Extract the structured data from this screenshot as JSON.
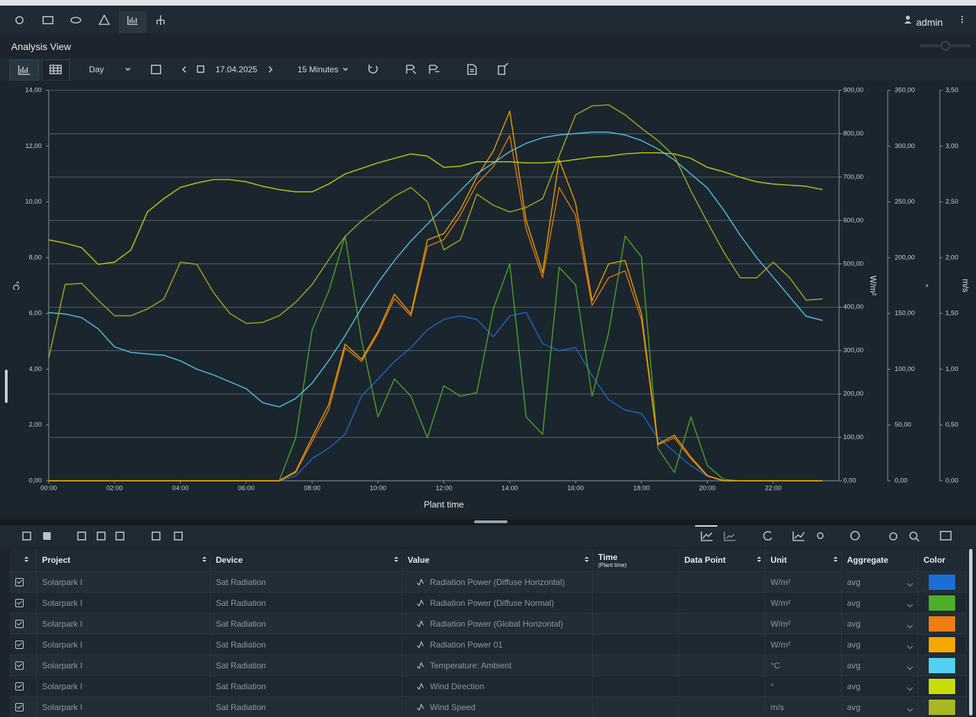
{
  "nav": {
    "user": "admin"
  },
  "view_title": "Analysis View",
  "toolbar": {
    "period": "Day",
    "date": "17.04.2025",
    "interval": "15 Minutes"
  },
  "chart_data": {
    "type": "line",
    "xlabel": "Plant time",
    "xlim": [
      0,
      24
    ],
    "xticks": [
      {
        "value": 0,
        "label": "00:00"
      },
      {
        "value": 2,
        "label": "02:00"
      },
      {
        "value": 4,
        "label": "04:00"
      },
      {
        "value": 6,
        "label": "06:00"
      },
      {
        "value": 8,
        "label": "08:00"
      },
      {
        "value": 10,
        "label": "10:00"
      },
      {
        "value": 12,
        "label": "12:00"
      },
      {
        "value": 14,
        "label": "14:00"
      },
      {
        "value": 16,
        "label": "16:00"
      },
      {
        "value": 18,
        "label": "18:00"
      },
      {
        "value": 20,
        "label": "20:00"
      },
      {
        "value": 22,
        "label": "22:00"
      }
    ],
    "axes": [
      {
        "label": "°C",
        "lim": [
          0,
          14
        ],
        "grid": false,
        "ticks": [
          {
            "value": 0,
            "label": "0,00"
          },
          {
            "value": 2,
            "label": "2,00"
          },
          {
            "value": 4,
            "label": "4,00"
          },
          {
            "value": 6,
            "label": "6,00"
          },
          {
            "value": 8,
            "label": "8,00"
          },
          {
            "value": 10,
            "label": "10,00"
          },
          {
            "value": 12,
            "label": "12,00"
          },
          {
            "value": 14,
            "label": "14,00"
          }
        ]
      },
      {
        "label": "W/m²",
        "lim": [
          0,
          900
        ],
        "grid": true,
        "ticks": [
          {
            "value": 0,
            "label": "0,00"
          },
          {
            "value": 100,
            "label": "100,00"
          },
          {
            "value": 200,
            "label": "200,00"
          },
          {
            "value": 300,
            "label": "300,00"
          },
          {
            "value": 400,
            "label": "400,00"
          },
          {
            "value": 500,
            "label": "500,00"
          },
          {
            "value": 600,
            "label": "600,00"
          },
          {
            "value": 700,
            "label": "700,00"
          },
          {
            "value": 800,
            "label": "800,00"
          },
          {
            "value": 900,
            "label": "900,00"
          }
        ]
      },
      {
        "label": "°",
        "lim": [
          0,
          350
        ],
        "grid": false,
        "ticks": [
          {
            "value": 0,
            "label": "0,00"
          },
          {
            "value": 50,
            "label": "50,00"
          },
          {
            "value": 100,
            "label": "100,00"
          },
          {
            "value": 150,
            "label": "150,00"
          },
          {
            "value": 200,
            "label": "200,00"
          },
          {
            "value": 250,
            "label": "250,00"
          },
          {
            "value": 300,
            "label": "300,00"
          },
          {
            "value": 350,
            "label": "350,00"
          }
        ]
      },
      {
        "label": "m/s",
        "lim": [
          0,
          3.5
        ],
        "grid": false,
        "ticks": [
          {
            "value": 0,
            "label": "0,00"
          },
          {
            "value": 0.5,
            "label": "0,50"
          },
          {
            "value": 1,
            "label": "1,00"
          },
          {
            "value": 1.5,
            "label": "1,50"
          },
          {
            "value": 2,
            "label": "2,00"
          },
          {
            "value": 2.5,
            "label": "2,50"
          },
          {
            "value": 3,
            "label": "3,00"
          },
          {
            "value": 3.5,
            "label": "3,50"
          }
        ]
      }
    ],
    "x": [
      0,
      0.5,
      1,
      1.5,
      2,
      2.5,
      3,
      3.5,
      4,
      4.5,
      5,
      5.5,
      6,
      6.5,
      7,
      7.5,
      8,
      8.5,
      9,
      9.5,
      10,
      10.5,
      11,
      11.5,
      12,
      12.5,
      13,
      13.5,
      14,
      14.5,
      15,
      15.5,
      16,
      16.5,
      17,
      17.5,
      18,
      18.5,
      19,
      19.5,
      20,
      20.5,
      21,
      21.5,
      22,
      22.5,
      23,
      23.5
    ],
    "series": [
      {
        "name": "Radiation Power (Diffuse Horizontal)",
        "color": "#1a6fd6",
        "axis": 1,
        "values": [
          0,
          0,
          0,
          0,
          0,
          0,
          0,
          0,
          0,
          0,
          0,
          0,
          0,
          0,
          0,
          11,
          51,
          75,
          107,
          195,
          235,
          275,
          307,
          348,
          372,
          380,
          372,
          332,
          380,
          388,
          316,
          300,
          307,
          243,
          187,
          163,
          155,
          99,
          67,
          35,
          11,
          0,
          0,
          0,
          0,
          0,
          0,
          0
        ]
      },
      {
        "name": "Radiation Power (Diffuse Normal)",
        "color": "#4caf2a",
        "axis": 1,
        "values": [
          0,
          0,
          0,
          0,
          0,
          0,
          0,
          0,
          0,
          0,
          0,
          0,
          0,
          0,
          0,
          99,
          348,
          436,
          564,
          324,
          147,
          235,
          195,
          99,
          219,
          195,
          203,
          396,
          500,
          147,
          107,
          492,
          452,
          195,
          340,
          564,
          516,
          75,
          19,
          147,
          35,
          3,
          0,
          0,
          0,
          0,
          0,
          0
        ]
      },
      {
        "name": "Radiation Power (Global Horizontal)",
        "color": "#f07d12",
        "axis": 1,
        "values": [
          0,
          0,
          0,
          0,
          0,
          0,
          0,
          0,
          0,
          0,
          0,
          0,
          0,
          0,
          0,
          19,
          91,
          163,
          307,
          275,
          340,
          420,
          380,
          540,
          556,
          612,
          684,
          724,
          796,
          580,
          468,
          676,
          612,
          404,
          468,
          484,
          372,
          83,
          99,
          51,
          11,
          0,
          0,
          0,
          0,
          0,
          0,
          0
        ]
      },
      {
        "name": "Radiation Power 01",
        "color": "#f5a800",
        "axis": 1,
        "values": [
          0,
          0,
          0,
          0,
          0,
          0,
          0,
          0,
          0,
          0,
          0,
          0,
          0,
          0,
          0,
          22,
          100,
          175,
          315,
          280,
          345,
          430,
          385,
          555,
          570,
          625,
          700,
          760,
          852,
          600,
          480,
          740,
          640,
          415,
          500,
          508,
          385,
          85,
          105,
          55,
          12,
          0,
          0,
          0,
          0,
          0,
          0,
          0
        ]
      },
      {
        "name": "Temperature: Ambient",
        "color": "#53d0f0",
        "axis": 0,
        "values": [
          6.03,
          5.98,
          5.85,
          5.45,
          4.8,
          4.6,
          4.55,
          4.5,
          4.3,
          4.0,
          3.8,
          3.55,
          3.3,
          2.8,
          2.65,
          2.95,
          3.5,
          4.3,
          5.2,
          6.2,
          7.1,
          7.9,
          8.6,
          9.2,
          9.8,
          10.4,
          11.0,
          11.4,
          11.8,
          12.1,
          12.3,
          12.4,
          12.45,
          12.5,
          12.5,
          12.4,
          12.2,
          11.9,
          11.5,
          11.0,
          10.5,
          9.7,
          8.8,
          8.0,
          7.3,
          6.6,
          5.9,
          5.75
        ]
      },
      {
        "name": "Wind Direction",
        "color": "#c8dc0a",
        "axis": 2,
        "values": [
          216,
          213,
          209,
          194,
          196,
          207,
          241,
          253,
          263,
          267,
          270,
          270,
          268,
          264,
          261,
          259,
          259,
          266,
          275,
          280,
          285,
          289,
          293,
          291,
          281,
          282,
          286,
          286,
          286,
          285,
          285,
          286,
          288,
          290,
          291,
          293,
          294,
          294,
          293,
          289,
          281,
          277,
          272,
          268,
          266,
          265,
          264,
          261
        ]
      },
      {
        "name": "Wind Speed",
        "color": "#a9b820",
        "axis": 3,
        "values": [
          1.1,
          1.76,
          1.77,
          1.62,
          1.48,
          1.48,
          1.54,
          1.63,
          1.96,
          1.94,
          1.69,
          1.5,
          1.41,
          1.42,
          1.48,
          1.6,
          1.76,
          1.98,
          2.19,
          2.33,
          2.44,
          2.55,
          2.63,
          2.5,
          2.07,
          2.16,
          2.57,
          2.47,
          2.41,
          2.45,
          2.53,
          2.91,
          3.28,
          3.36,
          3.37,
          3.28,
          3.16,
          3.05,
          2.91,
          2.6,
          2.32,
          2.05,
          1.82,
          1.82,
          1.96,
          1.82,
          1.62,
          1.63
        ]
      }
    ]
  },
  "table": {
    "headers": {
      "project": "Project",
      "device": "Device",
      "value": "Value",
      "time": "Time",
      "time_sub": "(Plant time)",
      "data_point": "Data Point",
      "unit": "Unit",
      "aggregate": "Aggregate",
      "color": "Color"
    },
    "rows": [
      {
        "project": "Solarpark I",
        "device": "Sat Radiation",
        "unit": "W/m²",
        "aggregate": "avg"
      },
      {
        "project": "Solarpark I",
        "device": "Sat Radiation",
        "unit": "W/m²",
        "aggregate": "avg"
      },
      {
        "project": "Solarpark I",
        "device": "Sat Radiation",
        "unit": "W/m²",
        "aggregate": "avg"
      },
      {
        "project": "Solarpark I",
        "device": "Sat Radiation",
        "unit": "W/m²",
        "aggregate": "avg"
      },
      {
        "project": "Solarpark I",
        "device": "Sat Radiation",
        "unit": "°C",
        "aggregate": "avg"
      },
      {
        "project": "Solarpark I",
        "device": "Sat Radiation",
        "unit": "°",
        "aggregate": "avg"
      },
      {
        "project": "Solarpark I",
        "device": "Sat Radiation",
        "unit": "m/s",
        "aggregate": "avg"
      }
    ]
  }
}
